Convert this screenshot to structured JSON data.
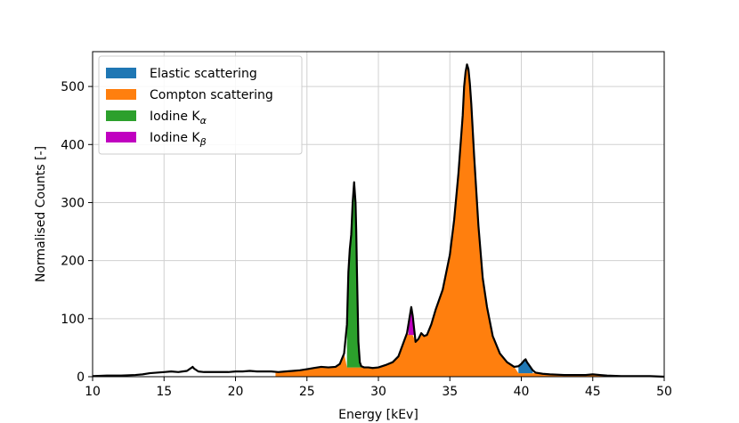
{
  "chart_data": {
    "type": "area",
    "xlabel": "Energy [kEv]",
    "ylabel": "Normalised Counts [-]",
    "xlim": [
      10,
      50
    ],
    "ylim": [
      0,
      560
    ],
    "xticks": [
      10,
      15,
      20,
      25,
      30,
      35,
      40,
      45,
      50
    ],
    "yticks": [
      0,
      100,
      200,
      300,
      400,
      500
    ],
    "grid": true,
    "legend_position": "top-left",
    "legend": [
      {
        "key": "elastic",
        "label": "Elastic scattering",
        "color": "#1f77b4"
      },
      {
        "key": "compton",
        "label": "Compton scattering",
        "color": "#ff7f0e"
      },
      {
        "key": "kalpha",
        "label": "Iodine K",
        "subscript": "α",
        "color": "#2ca02c"
      },
      {
        "key": "kbeta",
        "label": "Iodine K",
        "subscript": "β",
        "color": "#c000c0"
      }
    ],
    "spectrum": {
      "x": [
        10,
        11,
        12,
        13,
        13.5,
        14,
        14.5,
        15,
        15.5,
        16,
        16.3,
        16.6,
        16.9,
        17.0,
        17.1,
        17.4,
        17.8,
        18,
        18.5,
        19,
        19.5,
        20,
        20.5,
        21,
        21.5,
        22,
        22.5,
        23,
        23.5,
        24,
        24.5,
        25,
        25.5,
        26,
        26.5,
        27,
        27.3,
        27.6,
        27.8,
        27.9,
        28.0,
        28.1,
        28.2,
        28.3,
        28.4,
        28.45,
        28.5,
        28.6,
        28.7,
        28.8,
        29.0,
        29.3,
        29.6,
        30,
        30.5,
        31,
        31.4,
        31.7,
        32.0,
        32.2,
        32.3,
        32.4,
        32.6,
        32.8,
        33.0,
        33.2,
        33.4,
        33.7,
        34,
        34.5,
        35,
        35.3,
        35.6,
        35.9,
        36.0,
        36.1,
        36.2,
        36.3,
        36.4,
        36.5,
        36.7,
        37.0,
        37.3,
        37.6,
        38,
        38.5,
        39,
        39.5,
        39.8,
        40.0,
        40.2,
        40.3,
        40.4,
        40.6,
        40.8,
        41,
        41.5,
        42,
        43,
        44,
        44.5,
        45,
        45.5,
        46,
        47,
        48,
        49,
        50
      ],
      "y": [
        1,
        2,
        2,
        3,
        4,
        6,
        7,
        8,
        9,
        8,
        9,
        10,
        15,
        17,
        14,
        9,
        8,
        8,
        8,
        8,
        8,
        9,
        9,
        10,
        9,
        9,
        9,
        8,
        9,
        10,
        11,
        13,
        15,
        17,
        16,
        17,
        22,
        40,
        90,
        180,
        220,
        245,
        300,
        335,
        300,
        250,
        180,
        60,
        25,
        18,
        16,
        16,
        15,
        16,
        20,
        25,
        35,
        55,
        75,
        105,
        120,
        105,
        60,
        65,
        75,
        70,
        72,
        90,
        115,
        150,
        210,
        270,
        350,
        450,
        500,
        525,
        538,
        530,
        505,
        470,
        380,
        260,
        170,
        120,
        70,
        40,
        25,
        17,
        18,
        22,
        28,
        30,
        25,
        18,
        11,
        7,
        5,
        4,
        3,
        3,
        3,
        4,
        3,
        2,
        1,
        1,
        1,
        0
      ]
    },
    "regions": {
      "compton_start": 22.8,
      "baseline_kalpha": 16,
      "baseline_kbeta": 72,
      "baseline_elastic": 6,
      "kalpha_range": [
        27.8,
        28.8
      ],
      "kbeta_range": [
        32.1,
        32.6
      ],
      "elastic_range": [
        39.8,
        40.8
      ]
    }
  }
}
